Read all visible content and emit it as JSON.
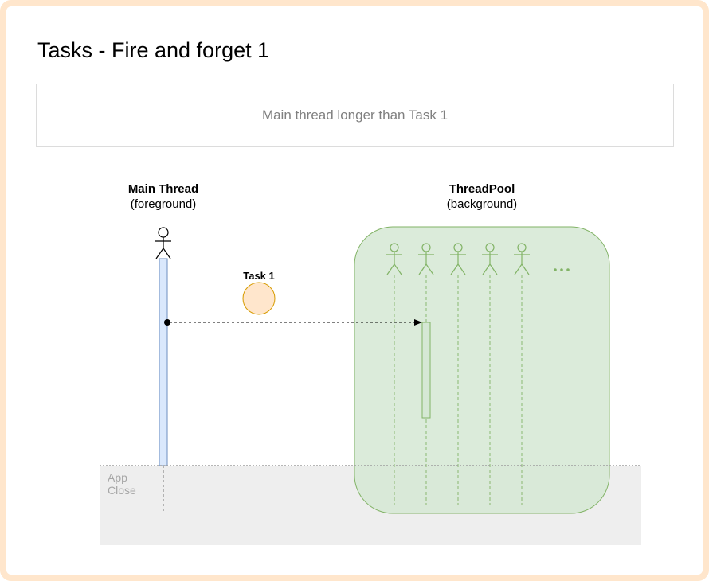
{
  "title": "Tasks - Fire and forget 1",
  "subtitle": "Main thread longer than Task 1",
  "main_thread": {
    "name": "Main Thread",
    "kind": "(foreground)"
  },
  "threadpool": {
    "name": "ThreadPool",
    "kind": "(background)",
    "worker_count": 5,
    "more": "..."
  },
  "task": {
    "label": "Task 1"
  },
  "app_close": {
    "line1": "App",
    "line2": "Close"
  },
  "colors": {
    "frame": "#ffe6cc",
    "pool_fill": "#d5e8d4",
    "pool_stroke": "#82b366",
    "main_bar_fill": "#dae8fc",
    "main_bar_stroke": "#6c8ebf",
    "task_fill": "#ffe6cc",
    "task_stroke": "#d79b00",
    "app_close_fill": "#eeeeee"
  }
}
